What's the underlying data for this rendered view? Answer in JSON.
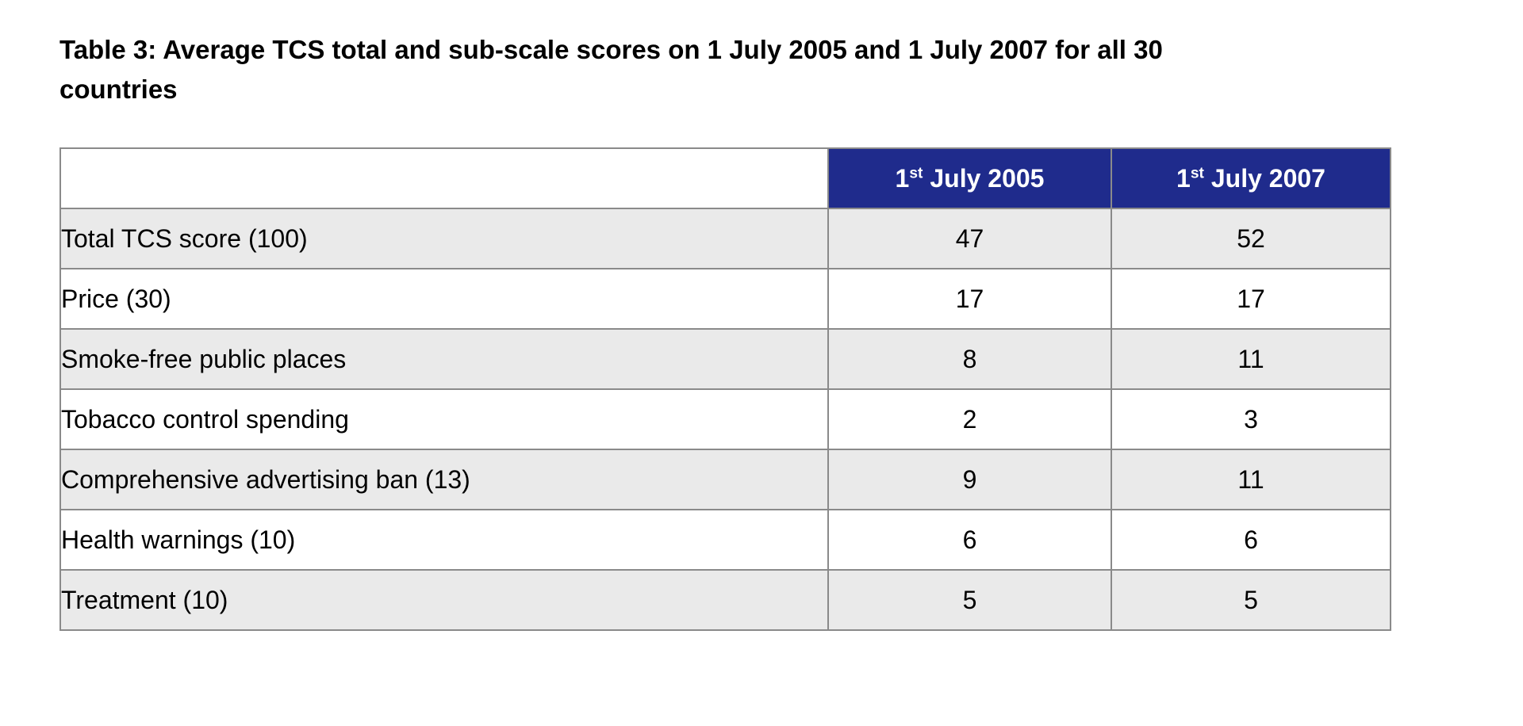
{
  "caption": "Table 3: Average TCS total and sub-scale scores on 1 July 2005 and 1 July 2007 for all 30 countries",
  "table": {
    "header": {
      "col2005": {
        "num": "1",
        "sup": "st",
        "rest": "July 2005"
      },
      "col2007": {
        "num": "1",
        "sup": "st",
        "rest": "July 2007"
      }
    },
    "rows": [
      {
        "label": "Total TCS score (100)",
        "v2005": "47",
        "v2007": "52"
      },
      {
        "label": "Price (30)",
        "v2005": "17",
        "v2007": "17"
      },
      {
        "label": "Smoke-free public places",
        "v2005": "8",
        "v2007": "11"
      },
      {
        "label": "Tobacco control spending",
        "v2005": "2",
        "v2007": "3"
      },
      {
        "label": "Comprehensive advertising ban (13)",
        "v2005": "9",
        "v2007": "11"
      },
      {
        "label": "Health warnings (10)",
        "v2005": "6",
        "v2007": "6"
      },
      {
        "label": "Treatment (10)",
        "v2005": "5",
        "v2007": "5"
      }
    ],
    "colors": {
      "header_bg": "#1f2b8c",
      "header_text": "#ffffff",
      "row_alt_bg": "#eaeaea",
      "row_bg": "#ffffff",
      "border": "#8a8a8a",
      "text": "#000000"
    }
  }
}
